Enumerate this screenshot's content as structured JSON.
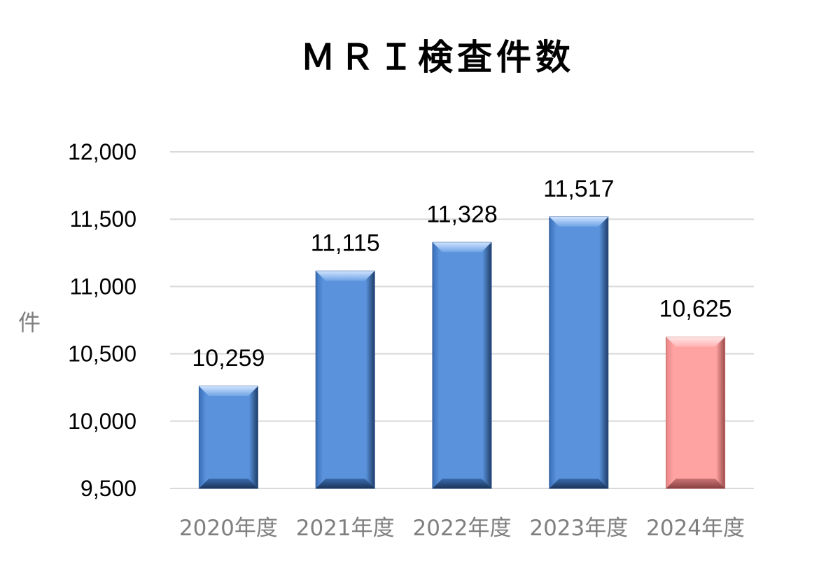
{
  "chart_data": {
    "type": "bar",
    "title": "ＭＲＩ検査件数",
    "ylabel": "件",
    "categories": [
      "2020年度",
      "2021年度",
      "2022年度",
      "2023年度",
      "2024年度"
    ],
    "values": [
      10259,
      11115,
      11328,
      11517,
      10625
    ],
    "value_labels": [
      "10,259",
      "11,115",
      "11,328",
      "11,517",
      "10,625"
    ],
    "ylim": [
      9500,
      12000
    ],
    "yticks": [
      9500,
      10000,
      10500,
      11000,
      11500,
      12000
    ],
    "ytick_labels": [
      "9,500",
      "10,000",
      "10,500",
      "11,000",
      "11,500",
      "12,000"
    ],
    "grid": true,
    "legend": "none",
    "colors": {
      "default_bar": "#4f86d4",
      "highlight_bar": "#ff9e9e",
      "highlight_index": 4,
      "gridline": "#d9d9d9"
    }
  }
}
